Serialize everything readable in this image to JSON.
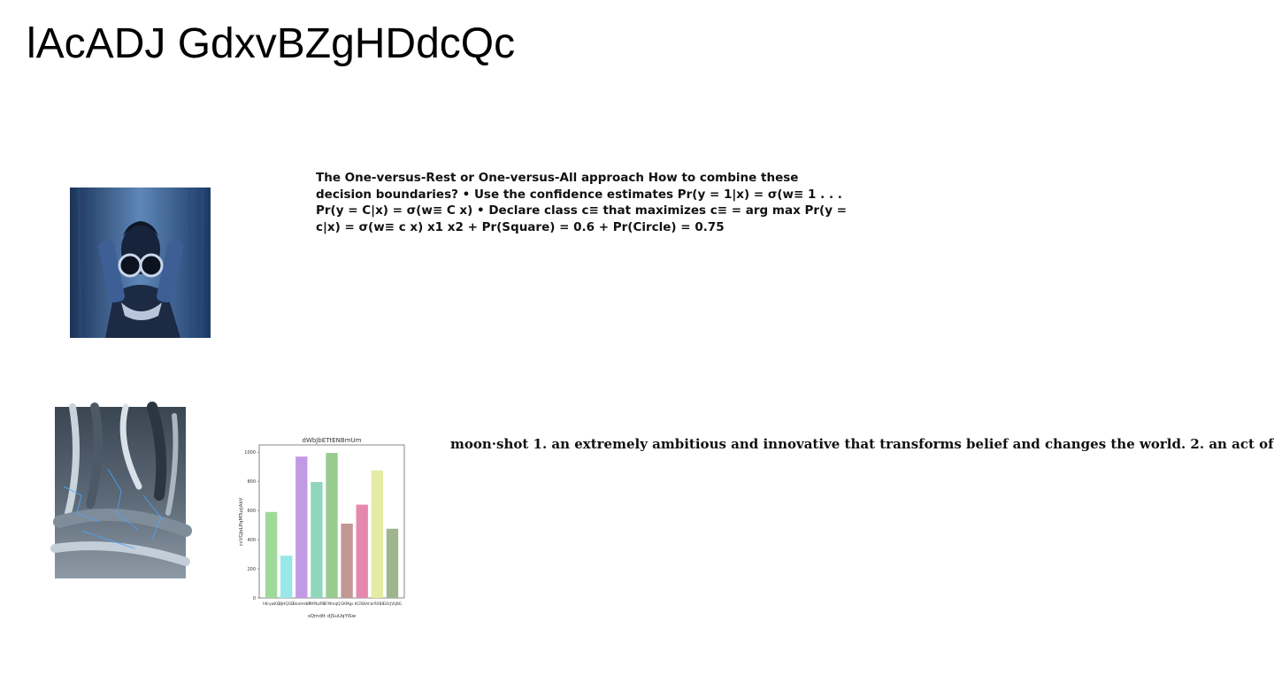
{
  "page": {
    "title": "lAcADJ GdxvBZgHDdcQc"
  },
  "text_block_1": "The One-versus-Rest or One-versus-All approach How to combine these decision boundaries? • Use the confidence estimates Pr(y = 1|x) = σ(w≡ 1 . . . Pr(y = C|x) = σ(w≡ C x) • Declare class c≡ that maximizes c≡ = arg max Pr(y = c|x) = σ(w≡ c x) x1 x2 + Pr(Square) = 0.6 + Pr(Circle) = 0.75",
  "text_block_2": "moon·shot 1. an extremely ambitious and innovative that transforms belief and changes the world. 2. an act of",
  "colors": {
    "bars": [
      "#9fd99a",
      "#97e8e6",
      "#c19ae3",
      "#8fd6bd",
      "#98cc8f",
      "#c39795",
      "#e688ad",
      "#e3eba4",
      "#9eb58f"
    ]
  },
  "chart_data": {
    "type": "bar",
    "title": "dWbJbETtENBmUm",
    "xlabel": "sQmdtt djSuUqYiSw",
    "ylabel": "ccVGJoLPqMTuzjAkV",
    "categories": [
      "hKrywKQ",
      "BJHQGD",
      "GbnHHbP",
      "WtPbzPE",
      "BFMmqQ",
      "GKMgs",
      "KCRBlAt",
      "brRXBS",
      "GOrJVtjBG"
    ],
    "values": [
      590,
      290,
      970,
      795,
      995,
      510,
      640,
      875,
      475
    ],
    "ylim": [
      0,
      1050
    ],
    "yticks": [
      0,
      200,
      400,
      600,
      800,
      1000
    ]
  }
}
